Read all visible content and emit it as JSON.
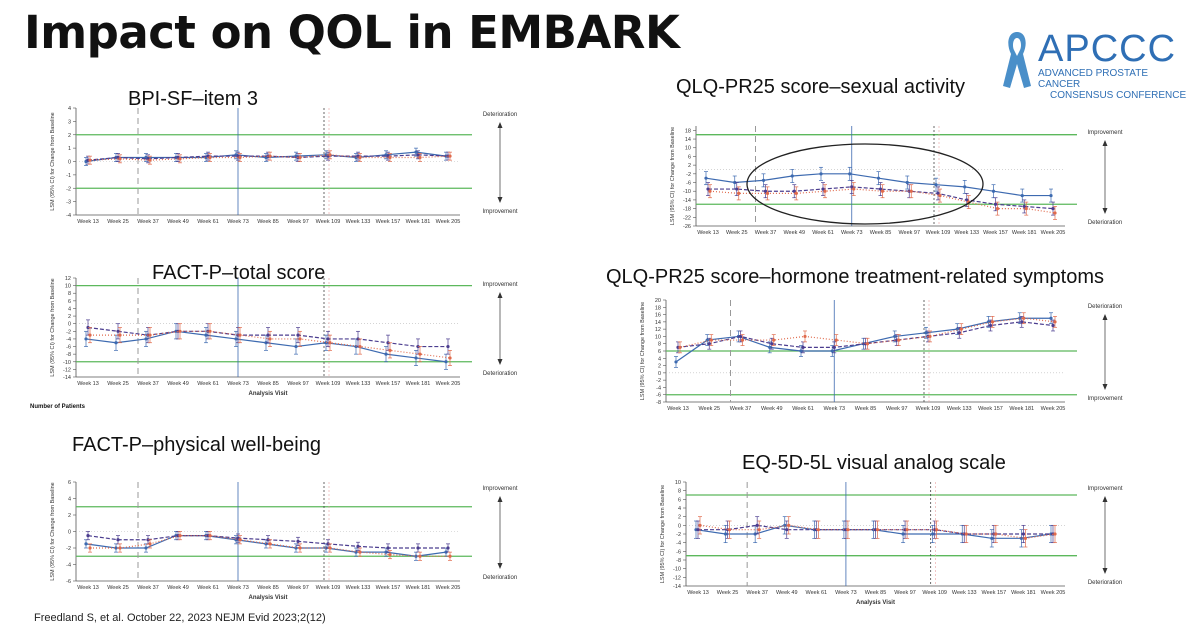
{
  "title": "Impact on QOL in EMBARK",
  "logo": {
    "name": "APCCC",
    "subtitle_line1": "ADVANCED PROSTATE CANCER",
    "subtitle_line2": "CONSENSUS CONFERENCE",
    "icon": "awareness-ribbon-icon"
  },
  "citation": "Freedland S, et al. October 22, 2023 NEJM Evid 2023;2(12)",
  "number_of_patients_label": "Number of Patients",
  "colors": {
    "blue": "#3d6ab0",
    "purple": "#4b3d8f",
    "red": "#e06a4c",
    "green": "#5cb85c",
    "gray": "#888888"
  },
  "chart_data": [
    {
      "id": "bpi",
      "type": "line",
      "title": "BPI-SF–item 3",
      "ylabel": "LSM (95% CI) for Change from Baseline",
      "xlabel": "",
      "ylim": [
        -4,
        4
      ],
      "yticks": [
        4,
        3,
        2,
        1,
        0,
        -1,
        -2,
        -3,
        -4
      ],
      "thresholds": [
        2,
        -2
      ],
      "top_label": "Deterioration",
      "bottom_label": "Improvement",
      "categories": [
        "Week 13",
        "Week 25",
        "Week 37",
        "Week 49",
        "Week 61",
        "Week 73",
        "Week 85",
        "Week 97",
        "Week 109",
        "Week 133",
        "Week 157",
        "Week 181",
        "Week 205"
      ],
      "series": [
        {
          "color": "blue",
          "style": "solid",
          "values": [
            0.0,
            0.3,
            0.3,
            0.3,
            0.3,
            0.5,
            0.3,
            0.4,
            0.5,
            0.3,
            0.5,
            0.7,
            0.4
          ],
          "ci": 0.3
        },
        {
          "color": "purple",
          "style": "dashed",
          "values": [
            0.1,
            0.3,
            0.2,
            0.3,
            0.4,
            0.4,
            0.4,
            0.3,
            0.4,
            0.4,
            0.4,
            0.5,
            0.4
          ],
          "ci": 0.3
        },
        {
          "color": "red",
          "style": "dotted",
          "values": [
            0.1,
            0.2,
            0.1,
            0.2,
            0.3,
            0.3,
            0.4,
            0.3,
            0.5,
            0.3,
            0.3,
            0.3,
            0.4
          ],
          "ci": 0.3
        }
      ]
    },
    {
      "id": "fact-total",
      "type": "line",
      "title": "FACT-P–total score",
      "ylabel": "LSM (95% CI) for Change from Baseline",
      "xlabel": "Analysis Visit",
      "ylim": [
        -14,
        12
      ],
      "yticks": [
        12,
        10,
        8,
        6,
        4,
        2,
        0,
        -2,
        -4,
        -6,
        -8,
        -10,
        -12,
        -14
      ],
      "thresholds": [
        10,
        -10
      ],
      "top_label": "Improvement",
      "bottom_label": "Deterioration",
      "categories": [
        "Week 13",
        "Week 25",
        "Week 37",
        "Week 49",
        "Week 61",
        "Week 73",
        "Week 85",
        "Week 97",
        "Week 109",
        "Week 133",
        "Week 157",
        "Week 181",
        "Week 205"
      ],
      "series": [
        {
          "color": "blue",
          "style": "solid",
          "values": [
            -4,
            -5,
            -4,
            -2,
            -3,
            -4,
            -5,
            -6,
            -5,
            -6,
            -8,
            -9,
            -10
          ],
          "ci": 2
        },
        {
          "color": "purple",
          "style": "dashed",
          "values": [
            -1,
            -2,
            -3,
            -2,
            -2,
            -3,
            -3,
            -3,
            -4,
            -4,
            -5,
            -6,
            -6
          ],
          "ci": 2
        },
        {
          "color": "red",
          "style": "dotted",
          "values": [
            -3,
            -3,
            -3,
            -2,
            -2,
            -3,
            -4,
            -4,
            -5,
            -6,
            -7,
            -8,
            -9
          ],
          "ci": 2
        }
      ]
    },
    {
      "id": "fact-physical",
      "type": "line",
      "title": "FACT-P–physical well-being",
      "ylabel": "LSM (95% CI) for Change from Baseline",
      "xlabel": "Analysis Visit",
      "ylim": [
        -6,
        6
      ],
      "yticks": [
        6,
        4,
        2,
        0,
        -2,
        -4,
        -6
      ],
      "thresholds": [
        3,
        -3
      ],
      "top_label": "Improvement",
      "bottom_label": "Deterioration",
      "categories": [
        "Week 13",
        "Week 25",
        "Week 37",
        "Week 49",
        "Week 61",
        "Week 73",
        "Week 85",
        "Week 97",
        "Week 109",
        "Week 133",
        "Week 157",
        "Week 181",
        "Week 205"
      ],
      "series": [
        {
          "color": "blue",
          "style": "solid",
          "values": [
            -1.5,
            -2,
            -2,
            -0.5,
            -0.5,
            -1,
            -1.5,
            -2,
            -2,
            -2.5,
            -2.5,
            -3,
            -2.5
          ],
          "ci": 0.5
        },
        {
          "color": "purple",
          "style": "dashed",
          "values": [
            -0.5,
            -1,
            -1,
            -0.5,
            -0.5,
            -0.8,
            -1,
            -1.2,
            -1.5,
            -1.8,
            -2,
            -2,
            -2
          ],
          "ci": 0.5
        },
        {
          "color": "red",
          "style": "dotted",
          "values": [
            -2,
            -2,
            -1.5,
            -0.5,
            -0.5,
            -1,
            -1.5,
            -2,
            -2,
            -2.5,
            -2.8,
            -3,
            -3
          ],
          "ci": 0.5
        }
      ]
    },
    {
      "id": "qlq-sexual",
      "type": "line",
      "title": "QLQ-PR25 score–sexual activity",
      "ylabel": "LSM (95% CI) for Change from Baseline",
      "xlabel": "",
      "ylim": [
        -26,
        20
      ],
      "yticks": [
        18,
        14,
        10,
        6,
        2,
        -2,
        -6,
        -10,
        -14,
        -18,
        -22,
        -26
      ],
      "thresholds": [
        16,
        -16
      ],
      "top_label": "Improvement",
      "bottom_label": "Deterioration",
      "categories": [
        "Week 13",
        "Week 25",
        "Week 37",
        "Week 49",
        "Week 61",
        "Week 73",
        "Week 85",
        "Week 97",
        "Week 109",
        "Week 133",
        "Week 157",
        "Week 181",
        "Week 205"
      ],
      "series": [
        {
          "color": "blue",
          "style": "solid",
          "values": [
            -4,
            -6,
            -5,
            -3,
            -2,
            -2,
            -4,
            -6,
            -7,
            -8,
            -10,
            -12,
            -12
          ],
          "ci": 3
        },
        {
          "color": "purple",
          "style": "dashed",
          "values": [
            -9,
            -9,
            -10,
            -10,
            -9,
            -8,
            -9,
            -10,
            -11,
            -14,
            -16,
            -17,
            -18
          ],
          "ci": 3
        },
        {
          "color": "red",
          "style": "dotted",
          "values": [
            -10,
            -11,
            -11,
            -11,
            -10,
            -9,
            -10,
            -10,
            -12,
            -15,
            -18,
            -18,
            -20
          ],
          "ci": 3
        }
      ]
    },
    {
      "id": "qlq-hormone",
      "type": "line",
      "title": "QLQ-PR25 score–hormone treatment-related symptoms",
      "ylabel": "LSM (95% CI) for Change from Baseline",
      "xlabel": "",
      "ylim": [
        -8,
        20
      ],
      "yticks": [
        20,
        18,
        16,
        14,
        12,
        10,
        8,
        6,
        4,
        2,
        0,
        -2,
        -4,
        -6,
        -8
      ],
      "thresholds": [
        6,
        -6
      ],
      "top_label": "Deterioration",
      "bottom_label": "Improvement",
      "categories": [
        "Week 13",
        "Week 25",
        "Week 37",
        "Week 49",
        "Week 61",
        "Week 73",
        "Week 85",
        "Week 97",
        "Week 109",
        "Week 133",
        "Week 157",
        "Week 181",
        "Week 205"
      ],
      "series": [
        {
          "color": "blue",
          "style": "solid",
          "values": [
            3,
            9,
            10,
            7,
            6,
            6,
            8,
            10,
            11,
            12,
            14,
            15,
            15
          ],
          "ci": 1.5
        },
        {
          "color": "purple",
          "style": "dashed",
          "values": [
            7,
            8,
            10,
            8,
            7,
            7,
            8,
            9,
            10,
            11,
            13,
            14,
            13
          ],
          "ci": 1.5
        },
        {
          "color": "red",
          "style": "dotted",
          "values": [
            7,
            9,
            9,
            9,
            10,
            9,
            8,
            9,
            10,
            12,
            14,
            15,
            14
          ],
          "ci": 1.5
        }
      ]
    },
    {
      "id": "eq5d",
      "type": "line",
      "title": "EQ-5D-5L visual analog scale",
      "ylabel": "LSM (95% CI) for Change from Baseline",
      "xlabel": "Analysis Visit",
      "ylim": [
        -14,
        10
      ],
      "yticks": [
        10,
        8,
        6,
        4,
        2,
        0,
        -2,
        -4,
        -6,
        -8,
        -10,
        -12,
        -14
      ],
      "thresholds": [
        7,
        -7
      ],
      "top_label": "Improvement",
      "bottom_label": "Deterioration",
      "categories": [
        "Week 13",
        "Week 25",
        "Week 37",
        "Week 49",
        "Week 61",
        "Week 73",
        "Week 85",
        "Week 97",
        "Week 109",
        "Week 133",
        "Week 157",
        "Week 181",
        "Week 205"
      ],
      "series": [
        {
          "color": "blue",
          "style": "solid",
          "values": [
            -1,
            -2,
            -2,
            0,
            -1,
            -1,
            -1,
            -2,
            -2,
            -2,
            -3,
            -3,
            -2
          ],
          "ci": 2
        },
        {
          "color": "purple",
          "style": "dashed",
          "values": [
            -1,
            -1,
            0,
            -1,
            -1,
            -1,
            -1,
            -1,
            -1,
            -2,
            -2,
            -2,
            -2
          ],
          "ci": 2
        },
        {
          "color": "red",
          "style": "dotted",
          "values": [
            0,
            -1,
            -1,
            0,
            -1,
            -1,
            -1,
            -1,
            -1,
            -2,
            -2,
            -3,
            -2
          ],
          "ci": 2
        }
      ]
    }
  ]
}
